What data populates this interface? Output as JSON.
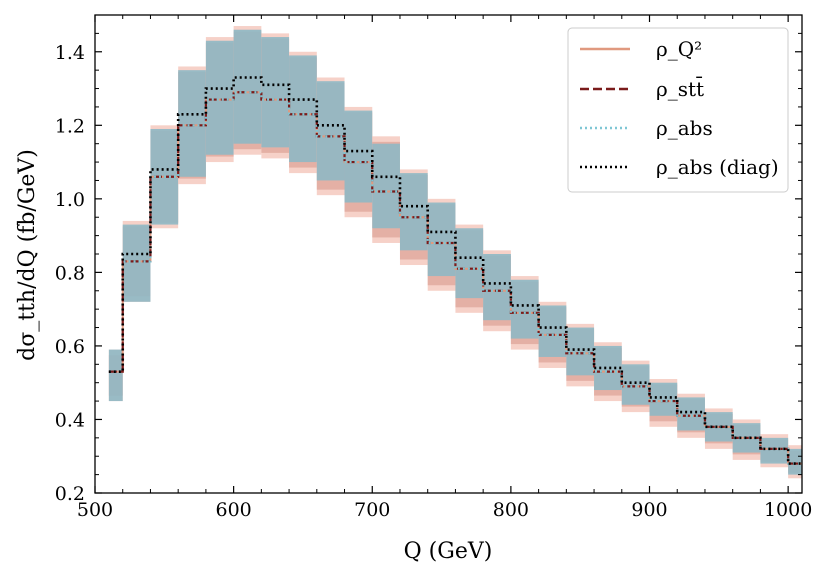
{
  "chart_data": {
    "type": "line",
    "title": "",
    "xlabel": "Q (GeV)",
    "ylabel": "dσ_tth/dQ (fb/GeV)",
    "xlim": [
      500,
      1010
    ],
    "ylim": [
      0.2,
      1.5
    ],
    "xticks": [
      "500",
      "600",
      "700",
      "800",
      "900",
      "1000"
    ],
    "yticks": [
      "0.2",
      "0.4",
      "0.6",
      "0.8",
      "1.0",
      "1.2",
      "1.4"
    ],
    "grid": false,
    "legend_position": "top-right",
    "bin_edges": [
      510,
      520,
      540,
      560,
      580,
      600,
      620,
      640,
      660,
      680,
      700,
      720,
      740,
      760,
      780,
      800,
      820,
      840,
      860,
      880,
      900,
      920,
      940,
      960,
      980,
      1000,
      1010
    ],
    "central": [
      0.53,
      0.83,
      1.06,
      1.2,
      1.27,
      1.29,
      1.27,
      1.23,
      1.17,
      1.1,
      1.02,
      0.95,
      0.88,
      0.81,
      0.75,
      0.69,
      0.63,
      0.58,
      0.53,
      0.49,
      0.45,
      0.41,
      0.38,
      0.35,
      0.32,
      0.28
    ],
    "diag": [
      0.53,
      0.85,
      1.08,
      1.23,
      1.3,
      1.33,
      1.31,
      1.27,
      1.2,
      1.13,
      1.06,
      0.98,
      0.91,
      0.84,
      0.77,
      0.71,
      0.65,
      0.59,
      0.54,
      0.5,
      0.46,
      0.42,
      0.38,
      0.35,
      0.32,
      0.28
    ],
    "band_lower": [
      0.45,
      0.72,
      0.92,
      1.04,
      1.1,
      1.12,
      1.11,
      1.07,
      1.01,
      0.95,
      0.88,
      0.82,
      0.75,
      0.69,
      0.64,
      0.59,
      0.54,
      0.49,
      0.45,
      0.42,
      0.38,
      0.35,
      0.32,
      0.29,
      0.27,
      0.24
    ],
    "band_upper": [
      0.59,
      0.94,
      1.2,
      1.36,
      1.44,
      1.47,
      1.45,
      1.4,
      1.33,
      1.25,
      1.17,
      1.08,
      1.0,
      0.93,
      0.86,
      0.79,
      0.72,
      0.66,
      0.61,
      0.56,
      0.51,
      0.47,
      0.43,
      0.4,
      0.36,
      0.33
    ],
    "abs_lower": [
      0.45,
      0.72,
      0.93,
      1.06,
      1.12,
      1.15,
      1.14,
      1.1,
      1.05,
      0.99,
      0.92,
      0.86,
      0.79,
      0.73,
      0.67,
      0.62,
      0.57,
      0.52,
      0.48,
      0.44,
      0.41,
      0.37,
      0.34,
      0.31,
      0.28,
      0.25
    ],
    "abs_upper": [
      0.59,
      0.93,
      1.19,
      1.35,
      1.43,
      1.46,
      1.44,
      1.39,
      1.32,
      1.24,
      1.15,
      1.07,
      0.99,
      0.92,
      0.85,
      0.78,
      0.71,
      0.65,
      0.6,
      0.55,
      0.5,
      0.46,
      0.42,
      0.39,
      0.35,
      0.32
    ],
    "series": [
      {
        "name": "ρ_Q²",
        "style": "solid",
        "color": "#e0997f"
      },
      {
        "name": "ρ_stt̄",
        "style": "dashed",
        "color": "#7a1b1b"
      },
      {
        "name": "ρ_abs",
        "style": "dotted",
        "color": "#7fc6d4"
      },
      {
        "name": "ρ_abs (diag)",
        "style": "dotted",
        "color": "#000000"
      }
    ],
    "colors": {
      "band_outer": "#f3c2b6",
      "band_inner": "#d8998e",
      "band_abs": "#8fb8c4"
    }
  }
}
